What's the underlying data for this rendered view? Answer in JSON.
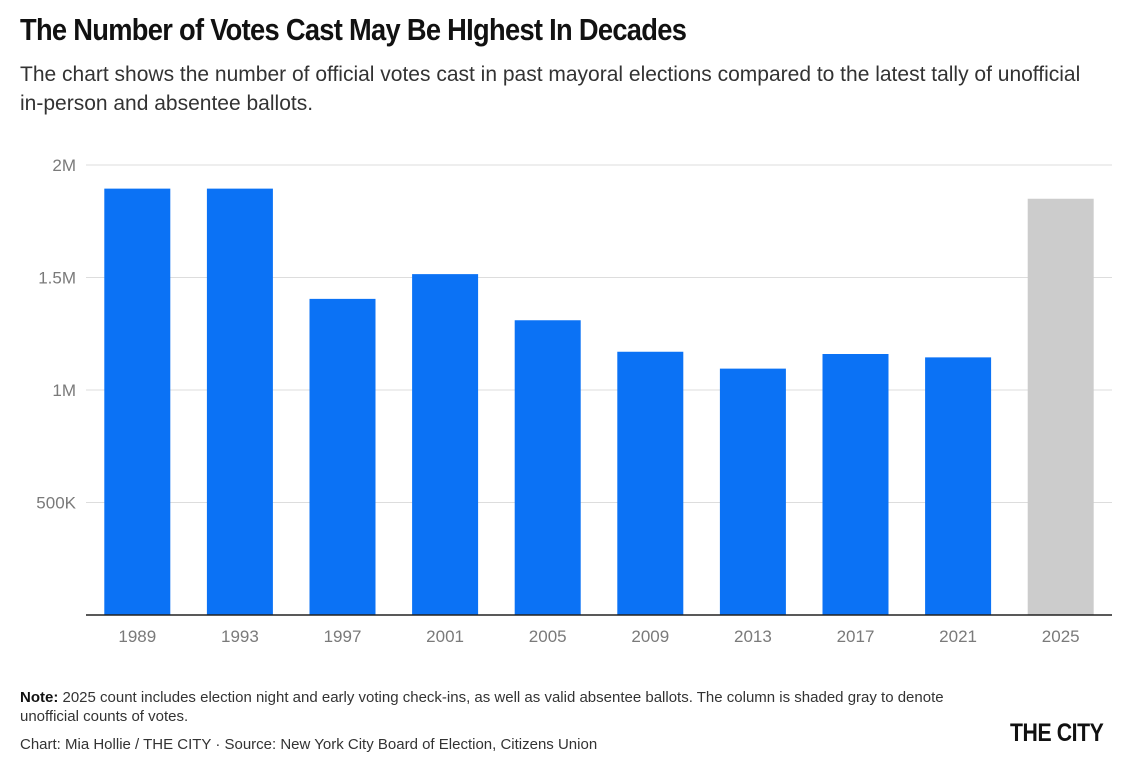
{
  "title": "The Number of Votes Cast May Be HIghest In Decades",
  "subtitle": "The chart shows the number of official votes cast in past mayoral elections compared to the latest tally of unofficial in-person and absentee ballots.",
  "note": {
    "label": "Note:",
    "text": " 2025 count includes election night and early voting check-ins, as well as valid absentee ballots. The column is shaded gray to denote unofficial counts of votes."
  },
  "credit": "Chart: Mia Hollie / THE CITY · Source: New York City Board of Election, Citizens Union",
  "logo": "THE CITY",
  "colors": {
    "official": "#0b72f5",
    "unofficial": "#cccccc",
    "gridline": "#dddddd",
    "baseline": "#222222"
  },
  "chart_data": {
    "type": "bar",
    "title": "The Number of Votes Cast May Be HIghest In Decades",
    "xlabel": "",
    "ylabel": "",
    "ylim": [
      0,
      2000000
    ],
    "y_ticks": [
      {
        "value": 500000,
        "label": "500K"
      },
      {
        "value": 1000000,
        "label": "1M"
      },
      {
        "value": 1500000,
        "label": "1.5M"
      },
      {
        "value": 2000000,
        "label": "2M"
      }
    ],
    "categories": [
      "1989",
      "1993",
      "1997",
      "2001",
      "2005",
      "2009",
      "2013",
      "2017",
      "2021",
      "2025"
    ],
    "values": [
      1895000,
      1895000,
      1405000,
      1515000,
      1310000,
      1170000,
      1095000,
      1160000,
      1145000,
      1850000
    ],
    "status": [
      "official",
      "official",
      "official",
      "official",
      "official",
      "official",
      "official",
      "official",
      "official",
      "unofficial"
    ],
    "grid": true,
    "legend": "none"
  }
}
